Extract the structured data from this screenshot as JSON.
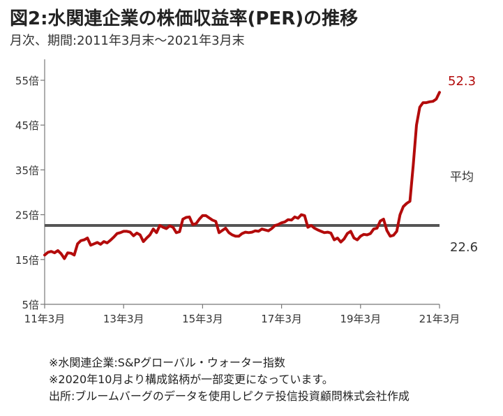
{
  "header": {
    "title": "図2:水関連企業の株価収益率(PER)の推移",
    "subtitle": "月次、期間:2011年3月末〜2021年3月末"
  },
  "colors": {
    "series": "#b30b0b",
    "average": "#555555",
    "axis": "#777777",
    "latest_label": "#b30b0b"
  },
  "chart_data": {
    "type": "line",
    "ylim": [
      5,
      55
    ],
    "y_ticks": [
      5,
      15,
      25,
      35,
      45,
      55
    ],
    "y_tick_labels": [
      "5倍",
      "15倍",
      "25倍",
      "35倍",
      "45倍",
      "55倍"
    ],
    "x_ticks": [
      "2011-03",
      "2013-03",
      "2015-03",
      "2017-03",
      "2019-03",
      "2021-03"
    ],
    "x_tick_labels": [
      "11年3月",
      "13年3月",
      "15年3月",
      "17年3月",
      "19年3月",
      "21年3月"
    ],
    "xlim": [
      "2011-03",
      "2021-03"
    ],
    "grid": false,
    "average": {
      "value": 22.6,
      "label_text": "平均",
      "value_text": "22.6"
    },
    "latest_value_text": "52.3",
    "series": [
      {
        "values": [
          {
            "x": "2011-03",
            "y": 16.0
          },
          {
            "x": "2011-04",
            "y": 16.6
          },
          {
            "x": "2011-05",
            "y": 16.8
          },
          {
            "x": "2011-06",
            "y": 16.5
          },
          {
            "x": "2011-07",
            "y": 17.0
          },
          {
            "x": "2011-08",
            "y": 16.3
          },
          {
            "x": "2011-09",
            "y": 15.2
          },
          {
            "x": "2011-10",
            "y": 16.5
          },
          {
            "x": "2011-11",
            "y": 16.4
          },
          {
            "x": "2011-12",
            "y": 16.0
          },
          {
            "x": "2012-01",
            "y": 18.5
          },
          {
            "x": "2012-02",
            "y": 19.2
          },
          {
            "x": "2012-03",
            "y": 19.4
          },
          {
            "x": "2012-04",
            "y": 19.8
          },
          {
            "x": "2012-05",
            "y": 18.2
          },
          {
            "x": "2012-06",
            "y": 18.5
          },
          {
            "x": "2012-07",
            "y": 18.8
          },
          {
            "x": "2012-08",
            "y": 18.4
          },
          {
            "x": "2012-09",
            "y": 19.0
          },
          {
            "x": "2012-10",
            "y": 18.7
          },
          {
            "x": "2012-11",
            "y": 19.3
          },
          {
            "x": "2012-12",
            "y": 20.0
          },
          {
            "x": "2013-01",
            "y": 20.8
          },
          {
            "x": "2013-02",
            "y": 21.0
          },
          {
            "x": "2013-03",
            "y": 21.3
          },
          {
            "x": "2013-04",
            "y": 21.3
          },
          {
            "x": "2013-05",
            "y": 21.1
          },
          {
            "x": "2013-06",
            "y": 20.3
          },
          {
            "x": "2013-07",
            "y": 20.9
          },
          {
            "x": "2013-08",
            "y": 20.5
          },
          {
            "x": "2013-09",
            "y": 19.0
          },
          {
            "x": "2013-10",
            "y": 19.8
          },
          {
            "x": "2013-11",
            "y": 20.5
          },
          {
            "x": "2013-12",
            "y": 21.8
          },
          {
            "x": "2014-01",
            "y": 21.0
          },
          {
            "x": "2014-02",
            "y": 22.6
          },
          {
            "x": "2014-03",
            "y": 22.2
          },
          {
            "x": "2014-04",
            "y": 21.9
          },
          {
            "x": "2014-05",
            "y": 22.5
          },
          {
            "x": "2014-06",
            "y": 22.2
          },
          {
            "x": "2014-07",
            "y": 21.0
          },
          {
            "x": "2014-08",
            "y": 21.2
          },
          {
            "x": "2014-09",
            "y": 24.0
          },
          {
            "x": "2014-10",
            "y": 24.4
          },
          {
            "x": "2014-11",
            "y": 24.5
          },
          {
            "x": "2014-12",
            "y": 22.8
          },
          {
            "x": "2015-01",
            "y": 23.0
          },
          {
            "x": "2015-02",
            "y": 24.0
          },
          {
            "x": "2015-03",
            "y": 24.8
          },
          {
            "x": "2015-04",
            "y": 24.8
          },
          {
            "x": "2015-05",
            "y": 24.3
          },
          {
            "x": "2015-06",
            "y": 23.8
          },
          {
            "x": "2015-07",
            "y": 23.5
          },
          {
            "x": "2015-08",
            "y": 21.0
          },
          {
            "x": "2015-09",
            "y": 21.5
          },
          {
            "x": "2015-10",
            "y": 22.0
          },
          {
            "x": "2015-11",
            "y": 21.0
          },
          {
            "x": "2015-12",
            "y": 20.5
          },
          {
            "x": "2016-01",
            "y": 20.2
          },
          {
            "x": "2016-02",
            "y": 20.2
          },
          {
            "x": "2016-03",
            "y": 20.8
          },
          {
            "x": "2016-04",
            "y": 21.1
          },
          {
            "x": "2016-05",
            "y": 21.0
          },
          {
            "x": "2016-06",
            "y": 21.1
          },
          {
            "x": "2016-07",
            "y": 21.4
          },
          {
            "x": "2016-08",
            "y": 21.3
          },
          {
            "x": "2016-09",
            "y": 21.8
          },
          {
            "x": "2016-10",
            "y": 21.6
          },
          {
            "x": "2016-11",
            "y": 21.4
          },
          {
            "x": "2016-12",
            "y": 21.9
          },
          {
            "x": "2017-01",
            "y": 22.6
          },
          {
            "x": "2017-02",
            "y": 22.8
          },
          {
            "x": "2017-03",
            "y": 23.2
          },
          {
            "x": "2017-04",
            "y": 23.4
          },
          {
            "x": "2017-05",
            "y": 23.9
          },
          {
            "x": "2017-06",
            "y": 23.8
          },
          {
            "x": "2017-07",
            "y": 24.5
          },
          {
            "x": "2017-08",
            "y": 24.2
          },
          {
            "x": "2017-09",
            "y": 25.0
          },
          {
            "x": "2017-10",
            "y": 24.8
          },
          {
            "x": "2017-11",
            "y": 22.2
          },
          {
            "x": "2017-12",
            "y": 22.6
          },
          {
            "x": "2018-01",
            "y": 22.0
          },
          {
            "x": "2018-02",
            "y": 21.6
          },
          {
            "x": "2018-03",
            "y": 21.3
          },
          {
            "x": "2018-04",
            "y": 21.0
          },
          {
            "x": "2018-05",
            "y": 21.1
          },
          {
            "x": "2018-06",
            "y": 20.9
          },
          {
            "x": "2018-07",
            "y": 19.4
          },
          {
            "x": "2018-08",
            "y": 19.8
          },
          {
            "x": "2018-09",
            "y": 18.9
          },
          {
            "x": "2018-10",
            "y": 19.6
          },
          {
            "x": "2018-11",
            "y": 20.8
          },
          {
            "x": "2018-12",
            "y": 21.3
          },
          {
            "x": "2019-01",
            "y": 19.8
          },
          {
            "x": "2019-02",
            "y": 19.4
          },
          {
            "x": "2019-03",
            "y": 20.2
          },
          {
            "x": "2019-04",
            "y": 20.6
          },
          {
            "x": "2019-05",
            "y": 20.5
          },
          {
            "x": "2019-06",
            "y": 20.8
          },
          {
            "x": "2019-07",
            "y": 21.8
          },
          {
            "x": "2019-08",
            "y": 22.0
          },
          {
            "x": "2019-09",
            "y": 23.6
          },
          {
            "x": "2019-10",
            "y": 24.0
          },
          {
            "x": "2019-11",
            "y": 21.5
          },
          {
            "x": "2019-12",
            "y": 20.2
          },
          {
            "x": "2020-01",
            "y": 20.4
          },
          {
            "x": "2020-02",
            "y": 21.3
          },
          {
            "x": "2020-03",
            "y": 25.0
          },
          {
            "x": "2020-04",
            "y": 26.8
          },
          {
            "x": "2020-05",
            "y": 27.5
          },
          {
            "x": "2020-06",
            "y": 28.0
          },
          {
            "x": "2020-07",
            "y": 36.0
          },
          {
            "x": "2020-08",
            "y": 45.0
          },
          {
            "x": "2020-09",
            "y": 49.0
          },
          {
            "x": "2020-10",
            "y": 50.0
          },
          {
            "x": "2020-11",
            "y": 50.0
          },
          {
            "x": "2020-12",
            "y": 50.2
          },
          {
            "x": "2021-01",
            "y": 50.3
          },
          {
            "x": "2021-02",
            "y": 50.8
          },
          {
            "x": "2021-03",
            "y": 52.3
          }
        ]
      }
    ]
  },
  "notes": [
    "※水関連企業:S&Pグローバル・ウォーター指数",
    "※2020年10月より構成銘柄が一部変更になっています。",
    "出所:ブルームバーグのデータを使用しピクテ投信投資顧問株式会社作成"
  ]
}
